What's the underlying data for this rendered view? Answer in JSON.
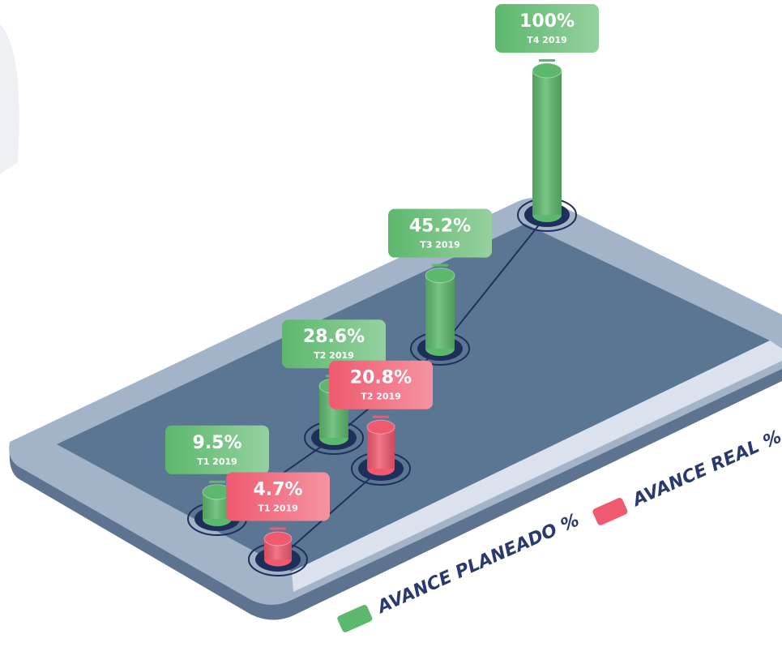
{
  "chart_data": {
    "type": "bar3d",
    "categories": [
      "T1 2019",
      "T2 2019",
      "T3 2019",
      "T4 2019"
    ],
    "series": [
      {
        "name": "AVANCE PLANEADO %",
        "color": "#5cb86c",
        "values": [
          9.5,
          28.6,
          45.2,
          100
        ],
        "value_labels": [
          "9.5%",
          "28.6%",
          "45.2%",
          "100%"
        ]
      },
      {
        "name": "AVANCE REAL %",
        "color": "#ef5a6f",
        "values": [
          4.7,
          20.8,
          null,
          null
        ],
        "value_labels": [
          "4.7%",
          "20.8%",
          null,
          null
        ]
      }
    ]
  }
}
